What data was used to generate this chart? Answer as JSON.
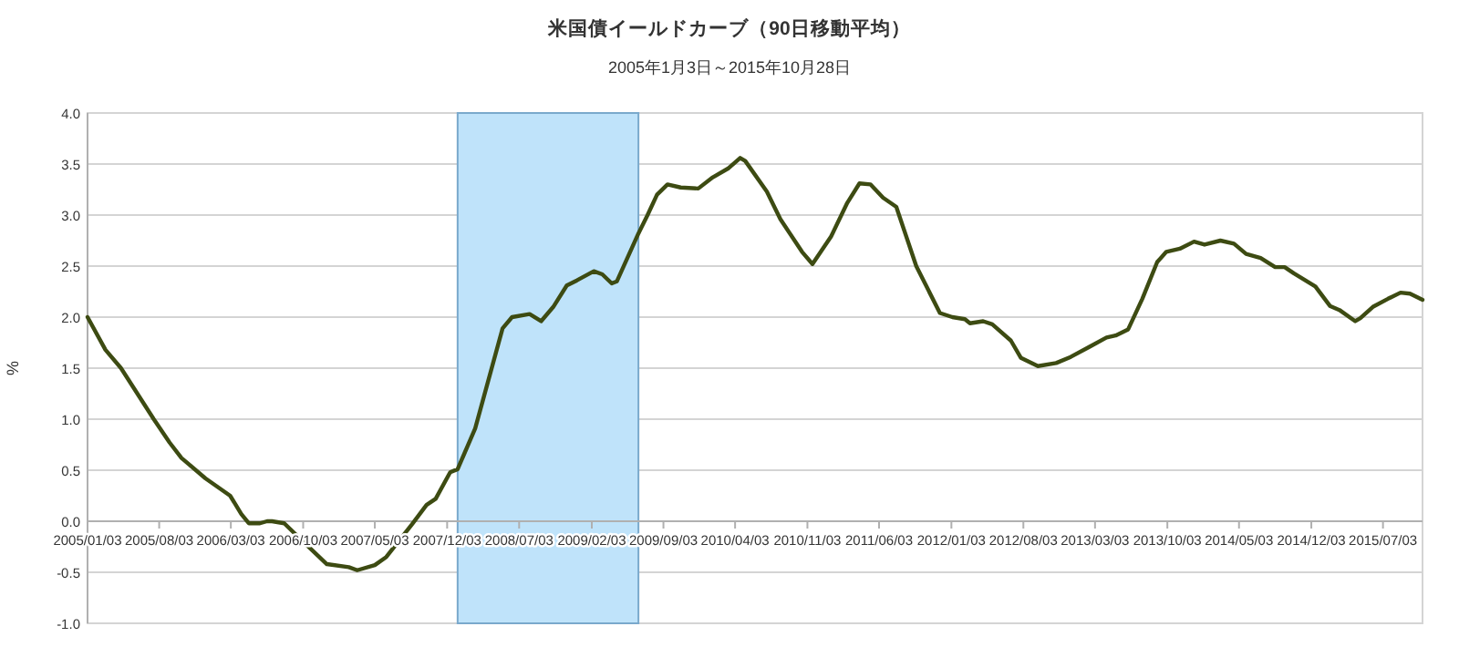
{
  "chart_data": {
    "type": "line",
    "title": "米国債イールドカーブ（90日移動平均）",
    "subtitle": "2005年1月3日～2015年10月28日",
    "ylabel": "%",
    "xlim": [
      "2005-01-03",
      "2015-10-28"
    ],
    "xticks": [
      {
        "value": "2005-01-03",
        "label": "2005/01/03"
      },
      {
        "value": "2005-08-03",
        "label": "2005/08/03"
      },
      {
        "value": "2006-03-03",
        "label": "2006/03/03"
      },
      {
        "value": "2006-10-03",
        "label": "2006/10/03"
      },
      {
        "value": "2007-05-03",
        "label": "2007/05/03"
      },
      {
        "value": "2007-12-03",
        "label": "2007/12/03"
      },
      {
        "value": "2008-07-03",
        "label": "2008/07/03"
      },
      {
        "value": "2009-02-03",
        "label": "2009/02/03"
      },
      {
        "value": "2009-09-03",
        "label": "2009/09/03"
      },
      {
        "value": "2010-04-03",
        "label": "2010/04/03"
      },
      {
        "value": "2010-11-03",
        "label": "2010/11/03"
      },
      {
        "value": "2011-06-03",
        "label": "2011/06/03"
      },
      {
        "value": "2012-01-03",
        "label": "2012/01/03"
      },
      {
        "value": "2012-08-03",
        "label": "2012/08/03"
      },
      {
        "value": "2013-03-03",
        "label": "2013/03/03"
      },
      {
        "value": "2013-10-03",
        "label": "2013/10/03"
      },
      {
        "value": "2014-05-03",
        "label": "2014/05/03"
      },
      {
        "value": "2014-12-03",
        "label": "2014/12/03"
      },
      {
        "value": "2015-07-03",
        "label": "2015/07/03"
      }
    ],
    "ylim": [
      -1,
      4
    ],
    "yticks": [
      {
        "value": -1,
        "label": "-1.0"
      },
      {
        "value": -0.5,
        "label": "-0.5"
      },
      {
        "value": 0,
        "label": "0.0"
      },
      {
        "value": 0.5,
        "label": "0.5"
      },
      {
        "value": 1,
        "label": "1.0"
      },
      {
        "value": 1.5,
        "label": "1.5"
      },
      {
        "value": 2,
        "label": "2.0"
      },
      {
        "value": 2.5,
        "label": "2.5"
      },
      {
        "value": 3,
        "label": "3.0"
      },
      {
        "value": 3.5,
        "label": "3.5"
      },
      {
        "value": 4,
        "label": "4.0"
      }
    ],
    "grid": "y",
    "bands": [
      {
        "axis": "x",
        "from": "2008-01-03",
        "to": "2009-06-21",
        "color": "#bfe3fa"
      }
    ],
    "series": [
      {
        "color": "#3d4b12",
        "x": [
          "2005-01-03",
          "2005-02-25",
          "2005-04-12",
          "2005-07-18",
          "2005-09-03",
          "2005-10-08",
          "2005-12-18",
          "2006-03-01",
          "2006-04-03",
          "2006-04-25",
          "2006-05-28",
          "2006-06-18",
          "2006-07-03",
          "2006-08-08",
          "2006-10-03",
          "2006-12-12",
          "2007-02-15",
          "2007-03-12",
          "2007-05-03",
          "2007-06-06",
          "2007-08-21",
          "2007-10-03",
          "2007-10-30",
          "2007-12-12",
          "2008-01-03",
          "2008-02-24",
          "2008-05-15",
          "2008-06-12",
          "2008-08-03",
          "2008-09-06",
          "2008-10-12",
          "2008-11-21",
          "2008-12-21",
          "2009-02-09",
          "2009-03-06",
          "2009-04-03",
          "2009-04-18",
          "2009-06-21",
          "2009-07-18",
          "2009-08-15",
          "2009-09-15",
          "2009-10-24",
          "2009-12-15",
          "2010-01-27",
          "2010-03-15",
          "2010-04-18",
          "2010-05-03",
          "2010-07-06",
          "2010-08-15",
          "2010-10-18",
          "2010-11-18",
          "2011-01-12",
          "2011-03-01",
          "2011-04-06",
          "2011-05-09",
          "2011-06-15",
          "2011-07-24",
          "2011-09-21",
          "2011-11-30",
          "2012-01-06",
          "2012-02-12",
          "2012-02-27",
          "2012-04-06",
          "2012-05-03",
          "2012-06-27",
          "2012-07-27",
          "2012-09-15",
          "2012-11-08",
          "2012-12-21",
          "2013-02-15",
          "2013-04-06",
          "2013-05-03",
          "2013-06-09",
          "2013-07-21",
          "2013-09-03",
          "2013-09-30",
          "2013-11-09",
          "2013-12-21",
          "2014-01-21",
          "2014-03-09",
          "2014-04-18",
          "2014-05-24",
          "2014-07-06",
          "2014-08-18",
          "2014-09-15",
          "2014-10-12",
          "2014-12-15",
          "2015-01-27",
          "2015-02-24",
          "2015-04-12",
          "2015-04-27",
          "2015-06-03",
          "2015-07-18",
          "2015-08-24",
          "2015-09-21",
          "2015-10-28"
        ],
        "values": [
          2.0,
          1.68,
          1.5,
          1.0,
          0.77,
          0.62,
          0.42,
          0.25,
          0.07,
          -0.02,
          -0.02,
          0.0,
          0.0,
          -0.02,
          -0.2,
          -0.42,
          -0.45,
          -0.48,
          -0.43,
          -0.35,
          -0.03,
          0.16,
          0.22,
          0.48,
          0.51,
          0.91,
          1.89,
          2.0,
          2.03,
          1.96,
          2.1,
          2.31,
          2.36,
          2.45,
          2.42,
          2.33,
          2.35,
          2.82,
          3.0,
          3.2,
          3.3,
          3.27,
          3.26,
          3.37,
          3.46,
          3.56,
          3.53,
          3.23,
          2.96,
          2.64,
          2.52,
          2.79,
          3.12,
          3.31,
          3.3,
          3.17,
          3.08,
          2.5,
          2.04,
          2.0,
          1.98,
          1.94,
          1.96,
          1.93,
          1.77,
          1.6,
          1.52,
          1.55,
          1.61,
          1.71,
          1.8,
          1.82,
          1.88,
          2.18,
          2.54,
          2.64,
          2.67,
          2.74,
          2.71,
          2.75,
          2.72,
          2.62,
          2.58,
          2.49,
          2.49,
          2.43,
          2.3,
          2.11,
          2.07,
          1.96,
          1.99,
          2.1,
          2.18,
          2.24,
          2.23,
          2.17
        ]
      }
    ]
  }
}
